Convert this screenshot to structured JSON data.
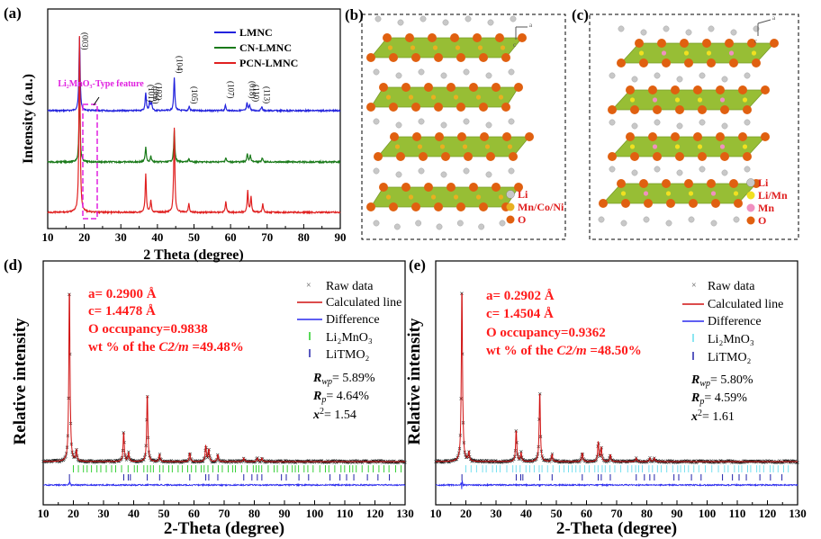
{
  "panels": {
    "a": "(a)",
    "b": "(b)",
    "c": "(c)",
    "d": "(d)",
    "e": "(e)"
  },
  "colors": {
    "LMNC": "#2323dd",
    "CN": "#1a7a1a",
    "PCN": "#e02020",
    "calc": "#d01010",
    "diff": "#2a2aee",
    "raw": "#555555",
    "tick1": "#22cc22",
    "tick2": "#2222aa",
    "annot": "#e020e0",
    "Li": "#c8c8c8",
    "TM": "#e8b020",
    "O": "#e06010",
    "Mn": "#f090c0",
    "slab": "#8cb820"
  },
  "chart_data": [
    {
      "type": "line",
      "panel": "(a)",
      "xlabel": "2 Theta (degree)",
      "ylabel": "Intensity (a.u.)",
      "xlim": [
        10,
        90
      ],
      "xticks": [
        10,
        20,
        30,
        40,
        50,
        60,
        70,
        80,
        90
      ],
      "series": [
        {
          "name": "LMNC",
          "peaks": [
            [
              18.7,
              1.0
            ],
            [
              36.8,
              0.25
            ],
            [
              37.9,
              0.12
            ],
            [
              38.4,
              0.1
            ],
            [
              44.6,
              0.45
            ],
            [
              48.7,
              0.06
            ],
            [
              58.6,
              0.07
            ],
            [
              64.5,
              0.1
            ],
            [
              65.2,
              0.08
            ],
            [
              68.5,
              0.06
            ]
          ]
        },
        {
          "name": "CN-LMNC",
          "peaks": [
            [
              18.7,
              1.0
            ],
            [
              36.8,
              0.22
            ],
            [
              38.2,
              0.08
            ],
            [
              44.6,
              0.45
            ],
            [
              48.6,
              0.05
            ],
            [
              58.7,
              0.06
            ],
            [
              64.6,
              0.12
            ],
            [
              65.4,
              0.09
            ],
            [
              68.7,
              0.06
            ]
          ]
        },
        {
          "name": "PCN-LMNC",
          "peaks": [
            [
              18.7,
              1.0
            ],
            [
              36.8,
              0.22
            ],
            [
              38.2,
              0.07
            ],
            [
              44.6,
              0.48
            ],
            [
              48.6,
              0.05
            ],
            [
              58.7,
              0.06
            ],
            [
              64.7,
              0.12
            ],
            [
              65.6,
              0.09
            ],
            [
              68.8,
              0.05
            ]
          ]
        }
      ],
      "peak_labels": [
        {
          "x": 18.7,
          "label": "(003)"
        },
        {
          "x": 36.8,
          "label": "(101)"
        },
        {
          "x": 38.0,
          "label": "(006)"
        },
        {
          "x": 38.9,
          "label": "(102)"
        },
        {
          "x": 44.6,
          "label": "(104)"
        },
        {
          "x": 48.7,
          "label": "(105)"
        },
        {
          "x": 58.6,
          "label": "(107)"
        },
        {
          "x": 64.5,
          "label": "(018)"
        },
        {
          "x": 65.5,
          "label": "(110)"
        },
        {
          "x": 68.5,
          "label": "(113)"
        }
      ],
      "annotation": "Li₂MnO₃-Type feature",
      "annotation_range": [
        20,
        24
      ]
    },
    {
      "type": "line",
      "panel": "(d)",
      "xlabel": "2-Theta (degree)",
      "ylabel": "Relative intensity",
      "xlim": [
        10,
        130
      ],
      "xticks": [
        10,
        20,
        30,
        40,
        50,
        60,
        70,
        80,
        90,
        100,
        110,
        120,
        130
      ],
      "legend": [
        "Raw data",
        "Calculated line",
        "Difference",
        "Li₂MnO₃",
        "LiTMO₂"
      ],
      "params": {
        "a": "a= 0.2900 Å",
        "c": "c= 1.4478 Å",
        "occupancy": "O occupancy=0.9838",
        "wt_prefix": "wt % of the ",
        "wt_phase": "C2/m",
        "wt_suffix": " =49.48%"
      },
      "stats": {
        "Rwp": "= 5.89%",
        "Rp": "= 4.64%",
        "x2": "= 1.54"
      },
      "peaks": [
        [
          18.7,
          1.0
        ],
        [
          21.0,
          0.06
        ],
        [
          36.7,
          0.17
        ],
        [
          38.3,
          0.05
        ],
        [
          44.5,
          0.39
        ],
        [
          48.6,
          0.04
        ],
        [
          58.6,
          0.05
        ],
        [
          63.9,
          0.09
        ],
        [
          64.9,
          0.07
        ],
        [
          67.9,
          0.04
        ],
        [
          76.5,
          0.02
        ],
        [
          81.0,
          0.02
        ],
        [
          82.5,
          0.02
        ]
      ]
    },
    {
      "type": "line",
      "panel": "(e)",
      "xlabel": "2-Theta (degree)",
      "ylabel": "Relative intensity",
      "xlim": [
        10,
        130
      ],
      "xticks": [
        10,
        20,
        30,
        40,
        50,
        60,
        70,
        80,
        90,
        100,
        110,
        120,
        130
      ],
      "legend": [
        "Raw data",
        "Calculated line",
        "Difference",
        "Li₂MnO₃",
        "LiTMO₂"
      ],
      "params": {
        "a": "a= 0.2902 Å",
        "c": "c= 1.4504 Å",
        "occupancy": "O occupancy=0.9362",
        "wt_prefix": "wt % of the ",
        "wt_phase": "C2/m",
        "wt_suffix": " =48.50%"
      },
      "stats": {
        "Rwp": "= 5.80%",
        "Rp": "= 4.59%",
        "x2": "= 1.61"
      },
      "peaks": [
        [
          18.7,
          1.0
        ],
        [
          21.0,
          0.05
        ],
        [
          36.7,
          0.18
        ],
        [
          38.3,
          0.05
        ],
        [
          44.5,
          0.4
        ],
        [
          48.6,
          0.04
        ],
        [
          58.6,
          0.05
        ],
        [
          63.9,
          0.11
        ],
        [
          64.9,
          0.08
        ],
        [
          67.9,
          0.04
        ],
        [
          76.5,
          0.02
        ],
        [
          81.0,
          0.02
        ],
        [
          82.5,
          0.02
        ]
      ]
    }
  ],
  "structures": {
    "b": {
      "legend": [
        "Li",
        "Mn/Co/Ni",
        "O"
      ],
      "axis_a": "a",
      "axis_c": "c"
    },
    "c": {
      "legend": [
        "Li",
        "Li/Mn",
        "Mn",
        "O"
      ],
      "axis_a": "a",
      "axis_c": "c"
    }
  }
}
